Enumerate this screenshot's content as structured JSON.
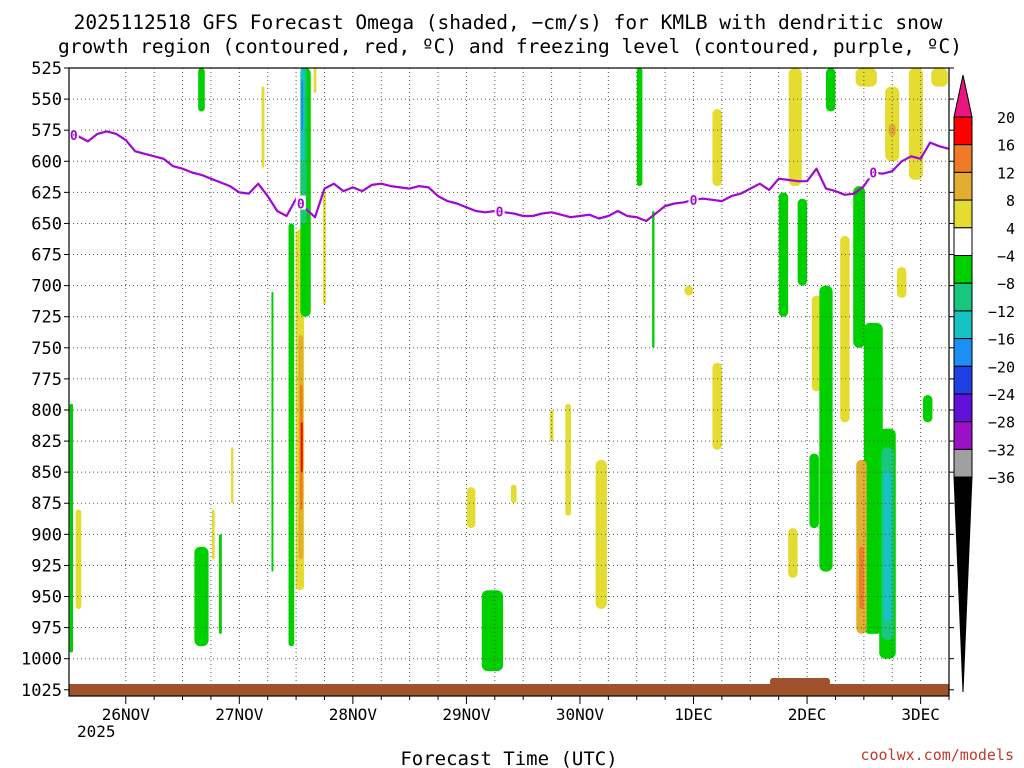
{
  "chart_data": {
    "type": "heatmap",
    "title_line1": "2025112518 GFS Forecast Omega (shaded, −cm/s) for KMLB with dendritic snow",
    "title_line2": "growth region (contoured, red, ºC) and freezing level (contoured, purple, ºC)",
    "xlabel": "Forecast Time (UTC)",
    "credit": "coolwx.com/models",
    "y_ticks": [
      525,
      550,
      575,
      600,
      625,
      650,
      675,
      700,
      725,
      750,
      775,
      800,
      825,
      850,
      875,
      900,
      925,
      950,
      975,
      1000,
      1025
    ],
    "ylim": [
      1030,
      525
    ],
    "x_range_hours": [
      -12,
      174
    ],
    "x_ticks": [
      {
        "label": "26NOV",
        "hour": 0
      },
      {
        "label": "27NOV",
        "hour": 24
      },
      {
        "label": "28NOV",
        "hour": 48
      },
      {
        "label": "29NOV",
        "hour": 72
      },
      {
        "label": "30NOV",
        "hour": 96
      },
      {
        "label": "1DEC",
        "hour": 120
      },
      {
        "label": "2DEC",
        "hour": 144
      },
      {
        "label": "3DEC",
        "hour": 168
      }
    ],
    "x_year_label": "2025",
    "colorbar": {
      "labels": [
        "20",
        "16",
        "12",
        "8",
        "4",
        "−4",
        "−8",
        "−12",
        "−16",
        "−20",
        "−24",
        "−28",
        "−32",
        "−36"
      ],
      "colors": [
        "#ff0000",
        "#ee7b27",
        "#e2ae30",
        "#e5dc32",
        "#ffffff",
        "#00d000",
        "#19c67e",
        "#16c2c2",
        "#1b8ff5",
        "#1f3ee4",
        "#6010d8",
        "#9b12c6",
        "#a0a0a0"
      ],
      "top_arrow_color": "#e8167e",
      "bottom_arrow_color": "#000000"
    },
    "freezing_level": {
      "color": "#a00ad0",
      "label": "0",
      "hours": [
        -12,
        -10,
        -8,
        -6,
        -4,
        -2,
        0,
        2,
        4,
        6,
        8,
        10,
        12,
        14,
        16,
        18,
        20,
        22,
        24,
        26,
        28,
        30,
        32,
        34,
        36,
        38,
        40,
        42,
        44,
        46,
        48,
        50,
        52,
        54,
        56,
        58,
        60,
        62,
        64,
        66,
        68,
        70,
        72,
        74,
        76,
        78,
        80,
        82,
        84,
        86,
        88,
        90,
        92,
        94,
        96,
        98,
        100,
        102,
        104,
        106,
        108,
        110,
        112,
        114,
        116,
        118,
        120,
        122,
        124,
        126,
        128,
        130,
        132,
        134,
        136,
        138,
        140,
        142,
        144,
        146,
        148,
        150,
        152,
        154,
        156,
        158,
        160,
        162,
        164,
        166,
        168,
        170,
        172,
        174
      ],
      "pressure": [
        578,
        580,
        584,
        578,
        576,
        578,
        583,
        592,
        594,
        596,
        598,
        604,
        606,
        609,
        611,
        614,
        617,
        620,
        625,
        626,
        618,
        628,
        640,
        644,
        630,
        638,
        645,
        622,
        618,
        624,
        621,
        624,
        619,
        618,
        620,
        621,
        622,
        620,
        621,
        628,
        632,
        634,
        637,
        640,
        641,
        640,
        641,
        642,
        644,
        644,
        642,
        641,
        643,
        645,
        644,
        643,
        646,
        644,
        640,
        644,
        645,
        648,
        642,
        636,
        634,
        633,
        631,
        630,
        631,
        632,
        628,
        626,
        622,
        618,
        623,
        614,
        615,
        616,
        616,
        606,
        622,
        624,
        627,
        626,
        620,
        609,
        610,
        608,
        600,
        596,
        598,
        585,
        588,
        590
      ],
      "label_hours": [
        -11,
        37,
        79,
        120,
        158
      ]
    },
    "omega_regions": [
      {
        "color": "#00d000",
        "hour": 16.0,
        "p_top": 525,
        "p_bot": 560,
        "width_h": 1.4
      },
      {
        "color": "#e5dc32",
        "hour": 29.0,
        "p_top": 540,
        "p_bot": 605,
        "width_h": 0.6
      },
      {
        "color": "#e5dc32",
        "hour": 36.8,
        "p_top": 655,
        "p_bot": 945,
        "width_h": 1.8
      },
      {
        "color": "#e2ae30",
        "hour": 37.0,
        "p_top": 740,
        "p_bot": 920,
        "width_h": 1.0
      },
      {
        "color": "#ee7b27",
        "hour": 37.1,
        "p_top": 780,
        "p_bot": 880,
        "width_h": 0.6
      },
      {
        "color": "#ff0000",
        "hour": 37.2,
        "p_top": 810,
        "p_bot": 850,
        "width_h": 0.3
      },
      {
        "color": "#00d000",
        "hour": 38.0,
        "p_top": 525,
        "p_bot": 725,
        "width_h": 2.2
      },
      {
        "color": "#19c67e",
        "hour": 37.6,
        "p_top": 525,
        "p_bot": 650,
        "width_h": 1.2
      },
      {
        "color": "#16c2c2",
        "hour": 37.4,
        "p_top": 525,
        "p_bot": 600,
        "width_h": 0.9
      },
      {
        "color": "#1b8ff5",
        "hour": 37.3,
        "p_top": 535,
        "p_bot": 575,
        "width_h": 0.4
      },
      {
        "color": "#00d000",
        "hour": 35.0,
        "p_top": 650,
        "p_bot": 990,
        "width_h": 1.2
      },
      {
        "color": "#e5dc32",
        "hour": 40.0,
        "p_top": 525,
        "p_bot": 545,
        "width_h": 0.6
      },
      {
        "color": "#e5dc32",
        "hour": 42.0,
        "p_top": 625,
        "p_bot": 715,
        "width_h": 0.6
      },
      {
        "color": "#00d000",
        "hour": 16.0,
        "p_top": 910,
        "p_bot": 990,
        "width_h": 3.0
      },
      {
        "color": "#00d000",
        "hour": 31.0,
        "p_top": 705,
        "p_bot": 930,
        "width_h": 0.4
      },
      {
        "color": "#00d000",
        "hour": 20.0,
        "p_top": 900,
        "p_bot": 980,
        "width_h": 0.6
      },
      {
        "color": "#e5dc32",
        "hour": 18.5,
        "p_top": 880,
        "p_bot": 920,
        "width_h": 0.6
      },
      {
        "color": "#e5dc32",
        "hour": 22.5,
        "p_top": 830,
        "p_bot": 875,
        "width_h": 0.5
      },
      {
        "color": "#00d000",
        "hour": -11.5,
        "p_top": 795,
        "p_bot": 995,
        "width_h": 0.7
      },
      {
        "color": "#e5dc32",
        "hour": -10.0,
        "p_top": 880,
        "p_bot": 960,
        "width_h": 1.2
      },
      {
        "color": "#00d000",
        "hour": 77.5,
        "p_top": 945,
        "p_bot": 1010,
        "width_h": 4.5
      },
      {
        "color": "#e5dc32",
        "hour": 73.0,
        "p_top": 862,
        "p_bot": 895,
        "width_h": 1.8
      },
      {
        "color": "#e5dc32",
        "hour": 82.0,
        "p_top": 860,
        "p_bot": 875,
        "width_h": 1.2
      },
      {
        "color": "#e5dc32",
        "hour": 90.0,
        "p_top": 800,
        "p_bot": 825,
        "width_h": 0.8
      },
      {
        "color": "#e5dc32",
        "hour": 93.5,
        "p_top": 795,
        "p_bot": 885,
        "width_h": 1.2
      },
      {
        "color": "#e5dc32",
        "hour": 100.5,
        "p_top": 840,
        "p_bot": 960,
        "width_h": 2.4
      },
      {
        "color": "#00d000",
        "hour": 108.6,
        "p_top": 525,
        "p_bot": 620,
        "width_h": 1.2
      },
      {
        "color": "#00d000",
        "hour": 111.5,
        "p_top": 640,
        "p_bot": 750,
        "width_h": 0.5
      },
      {
        "color": "#e5dc32",
        "hour": 119.0,
        "p_top": 700,
        "p_bot": 708,
        "width_h": 1.8
      },
      {
        "color": "#e5dc32",
        "hour": 125.0,
        "p_top": 558,
        "p_bot": 620,
        "width_h": 2.0
      },
      {
        "color": "#e5dc32",
        "hour": 125.0,
        "p_top": 762,
        "p_bot": 832,
        "width_h": 2.0
      },
      {
        "color": "#00d000",
        "hour": 139.0,
        "p_top": 625,
        "p_bot": 725,
        "width_h": 2.0
      },
      {
        "color": "#e5dc32",
        "hour": 141.5,
        "p_top": 525,
        "p_bot": 620,
        "width_h": 2.8
      },
      {
        "color": "#00d000",
        "hour": 143.0,
        "p_top": 630,
        "p_bot": 700,
        "width_h": 2.0
      },
      {
        "color": "#e5dc32",
        "hour": 146.0,
        "p_top": 708,
        "p_bot": 785,
        "width_h": 2.0
      },
      {
        "color": "#00d000",
        "hour": 149.0,
        "p_top": 525,
        "p_bot": 560,
        "width_h": 2.0
      },
      {
        "color": "#00d000",
        "hour": 145.5,
        "p_top": 835,
        "p_bot": 895,
        "width_h": 2.0
      },
      {
        "color": "#00d000",
        "hour": 148.0,
        "p_top": 700,
        "p_bot": 930,
        "width_h": 2.8
      },
      {
        "color": "#e5dc32",
        "hour": 152.0,
        "p_top": 660,
        "p_bot": 810,
        "width_h": 2.0
      },
      {
        "color": "#e5dc32",
        "hour": 141.0,
        "p_top": 895,
        "p_bot": 935,
        "width_h": 2.0
      },
      {
        "color": "#e5dc32",
        "hour": 156.5,
        "p_top": 525,
        "p_bot": 540,
        "width_h": 4.5
      },
      {
        "color": "#e5dc32",
        "hour": 162.0,
        "p_top": 540,
        "p_bot": 600,
        "width_h": 3.0
      },
      {
        "color": "#e2ae30",
        "hour": 162.0,
        "p_top": 570,
        "p_bot": 580,
        "width_h": 1.5
      },
      {
        "color": "#00d000",
        "hour": 155.0,
        "p_top": 620,
        "p_bot": 750,
        "width_h": 2.5
      },
      {
        "color": "#00d000",
        "hour": 158.0,
        "p_top": 730,
        "p_bot": 980,
        "width_h": 4.0
      },
      {
        "color": "#e5dc32",
        "hour": 164.0,
        "p_top": 685,
        "p_bot": 710,
        "width_h": 2.0
      },
      {
        "color": "#e5dc32",
        "hour": 167.0,
        "p_top": 525,
        "p_bot": 615,
        "width_h": 3.0
      },
      {
        "color": "#e5dc32",
        "hour": 172.0,
        "p_top": 525,
        "p_bot": 540,
        "width_h": 3.5
      },
      {
        "color": "#e2ae30",
        "hour": 155.5,
        "p_top": 840,
        "p_bot": 980,
        "width_h": 2.2
      },
      {
        "color": "#ee7b27",
        "hour": 155.5,
        "p_top": 910,
        "p_bot": 960,
        "width_h": 1.0
      },
      {
        "color": "#00d000",
        "hour": 161.0,
        "p_top": 815,
        "p_bot": 1000,
        "width_h": 3.5
      },
      {
        "color": "#19c67e",
        "hour": 161.0,
        "p_top": 830,
        "p_bot": 985,
        "width_h": 2.6
      },
      {
        "color": "#16c2c2",
        "hour": 161.0,
        "p_top": 850,
        "p_bot": 970,
        "width_h": 1.6
      },
      {
        "color": "#00d000",
        "hour": 169.5,
        "p_top": 788,
        "p_bot": 810,
        "width_h": 2.0
      }
    ]
  }
}
